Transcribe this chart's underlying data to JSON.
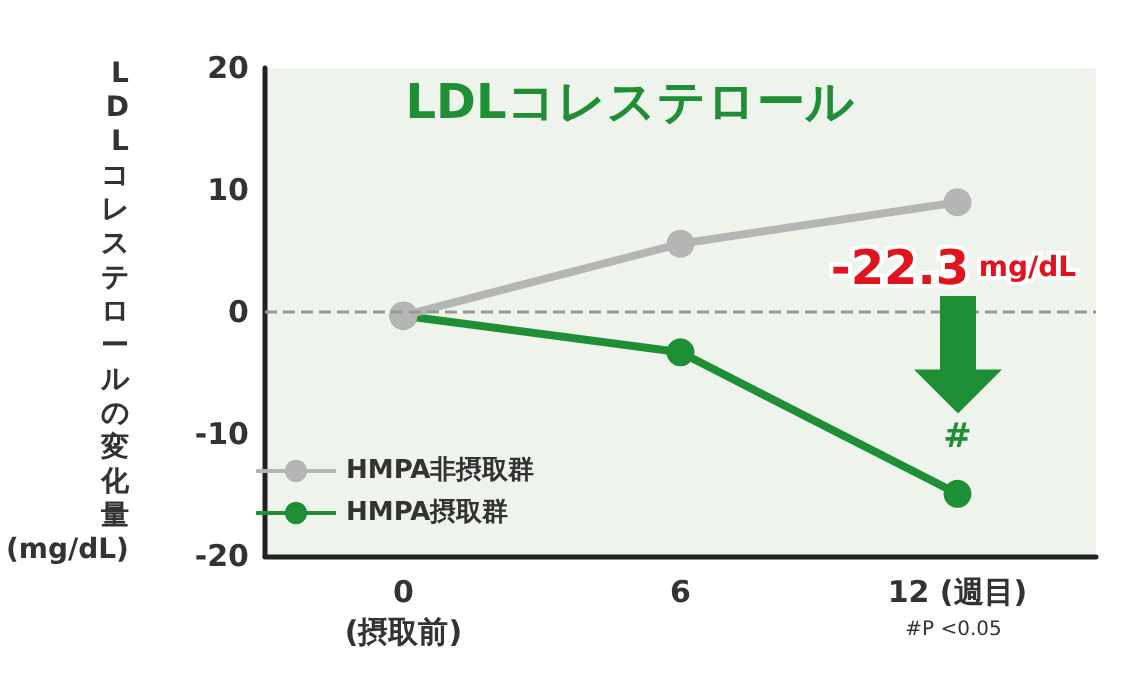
{
  "chart_data": {
    "type": "line",
    "title": "LDLコレステロール",
    "ylabel": "LDLコレステロールの変化量 (mg/dL)",
    "categories": [
      "0\n(摂取前)",
      "6",
      "12 (週目)"
    ],
    "series": [
      {
        "name": "HMPA非摂取群",
        "color": "#b5b5b5",
        "values": [
          -0.3,
          5.6,
          9.0
        ]
      },
      {
        "name": "HMPA摂取群",
        "color": "#1e8f35",
        "values": [
          -0.3,
          -3.3,
          -14.9
        ]
      }
    ],
    "ylim": [
      -20,
      20
    ],
    "yticks": [
      -20,
      -10,
      0,
      10,
      20
    ],
    "ref_lines": [
      {
        "axis": "y",
        "value": 0,
        "color": "#999999",
        "line_style": "dashed"
      }
    ],
    "annotations": [
      "-22.3 mg/dL",
      {
        "text": "#",
        "x": "12 (週目)",
        "y": -14.9
      },
      "#P <0.05"
    ],
    "legend": "bottom left",
    "marker": "circle",
    "line_style": "solid",
    "grid": false
  }
}
